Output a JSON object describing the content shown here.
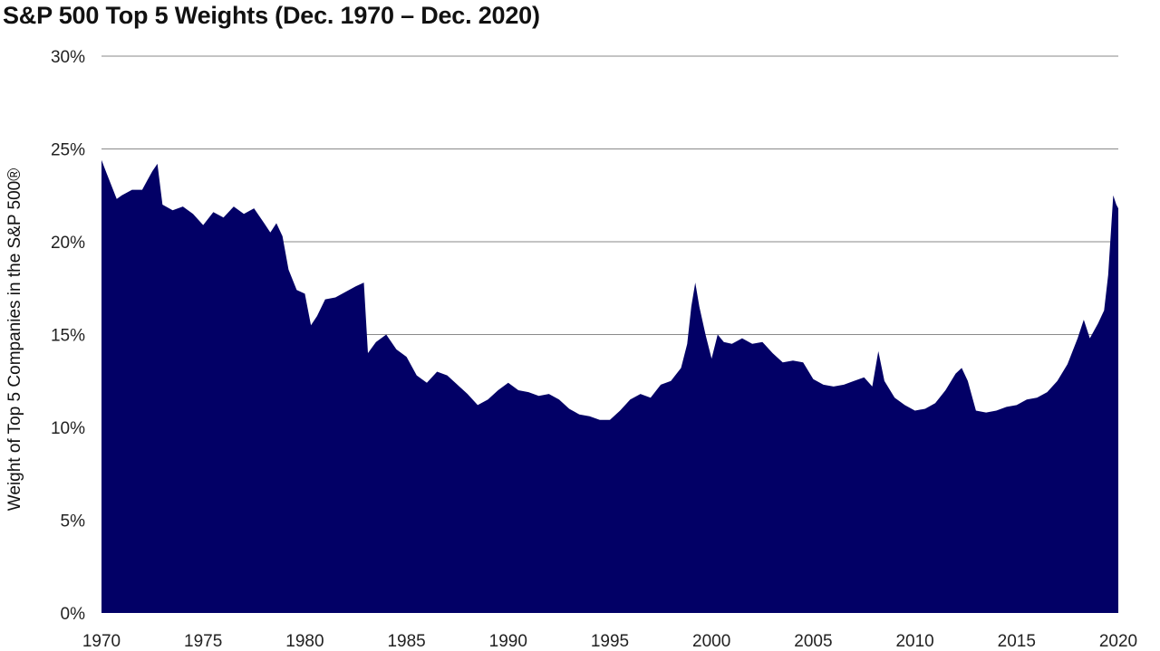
{
  "chart_data": {
    "type": "area",
    "title": "S&P 500 Top 5 Weights (Dec. 1970 – Dec. 2020)",
    "xlabel": "",
    "ylabel": "Weight of Top 5 Companies in the S&P 500®",
    "xlim": [
      1970,
      2020
    ],
    "ylim": [
      0,
      30
    ],
    "grid": true,
    "legend": "none",
    "color": "#020066",
    "x_ticks": [
      "1970",
      "1975",
      "1980",
      "1985",
      "1990",
      "1995",
      "2000",
      "2005",
      "2010",
      "2015",
      "2020"
    ],
    "y_ticks": [
      "0%",
      "5%",
      "10%",
      "15%",
      "20%",
      "25%",
      "30%"
    ],
    "series": [
      {
        "x": [
          1970.0,
          1970.25,
          1970.5,
          1970.75,
          1971.0,
          1971.5,
          1972.0,
          1972.25,
          1972.5,
          1972.75,
          1973.0,
          1973.5,
          1974.0,
          1974.5,
          1975.0,
          1975.5,
          1976.0,
          1976.5,
          1977.0,
          1977.5,
          1978.0,
          1978.3,
          1978.6,
          1978.9,
          1979.2,
          1979.6,
          1980.0,
          1980.3,
          1980.6,
          1981.0,
          1981.5,
          1982.0,
          1982.5,
          1982.9,
          1983.1,
          1983.5,
          1984.0,
          1984.5,
          1985.0,
          1985.5,
          1986.0,
          1986.5,
          1987.0,
          1987.5,
          1988.0,
          1988.5,
          1989.0,
          1989.5,
          1990.0,
          1990.5,
          1991.0,
          1991.5,
          1992.0,
          1992.5,
          1993.0,
          1993.5,
          1994.0,
          1994.5,
          1995.0,
          1995.5,
          1996.0,
          1996.5,
          1997.0,
          1997.5,
          1998.0,
          1998.5,
          1998.8,
          1999.0,
          1999.2,
          1999.4,
          1999.7,
          2000.0,
          2000.3,
          2000.6,
          2001.0,
          2001.5,
          2002.0,
          2002.5,
          2003.0,
          2003.5,
          2004.0,
          2004.5,
          2005.0,
          2005.5,
          2006.0,
          2006.5,
          2007.0,
          2007.5,
          2007.9,
          2008.2,
          2008.5,
          2009.0,
          2009.5,
          2010.0,
          2010.5,
          2011.0,
          2011.5,
          2012.0,
          2012.3,
          2012.6,
          2013.0,
          2013.5,
          2014.0,
          2014.5,
          2015.0,
          2015.5,
          2016.0,
          2016.5,
          2017.0,
          2017.5,
          2018.0,
          2018.3,
          2018.6,
          2019.0,
          2019.3,
          2019.5,
          2019.75,
          2019.9,
          2020.0
        ],
        "y": [
          24.4,
          23.7,
          23.0,
          22.3,
          22.5,
          22.8,
          22.8,
          23.3,
          23.8,
          24.2,
          22.0,
          21.7,
          21.9,
          21.5,
          20.9,
          21.6,
          21.3,
          21.9,
          21.5,
          21.8,
          21.0,
          20.5,
          21.0,
          20.3,
          18.5,
          17.4,
          17.2,
          15.5,
          16.0,
          16.9,
          17.0,
          17.3,
          17.6,
          17.8,
          14.0,
          14.6,
          15.0,
          14.2,
          13.8,
          12.8,
          12.4,
          13.0,
          12.8,
          12.3,
          11.8,
          11.2,
          11.5,
          12.0,
          12.4,
          12.0,
          11.9,
          11.7,
          11.8,
          11.5,
          11.0,
          10.7,
          10.6,
          10.4,
          10.4,
          10.9,
          11.5,
          11.8,
          11.6,
          12.3,
          12.5,
          13.2,
          14.5,
          16.5,
          17.8,
          16.5,
          15.0,
          13.7,
          15.0,
          14.6,
          14.5,
          14.8,
          14.5,
          14.6,
          14.0,
          13.5,
          13.6,
          13.5,
          12.6,
          12.3,
          12.2,
          12.3,
          12.5,
          12.7,
          12.2,
          14.1,
          12.5,
          11.6,
          11.2,
          10.9,
          11.0,
          11.3,
          12.0,
          12.9,
          13.2,
          12.5,
          10.9,
          10.8,
          10.9,
          11.1,
          11.2,
          11.5,
          11.6,
          11.9,
          12.5,
          13.4,
          14.8,
          15.8,
          14.8,
          15.6,
          16.3,
          18.2,
          22.5,
          22.0,
          21.8
        ]
      }
    ]
  }
}
